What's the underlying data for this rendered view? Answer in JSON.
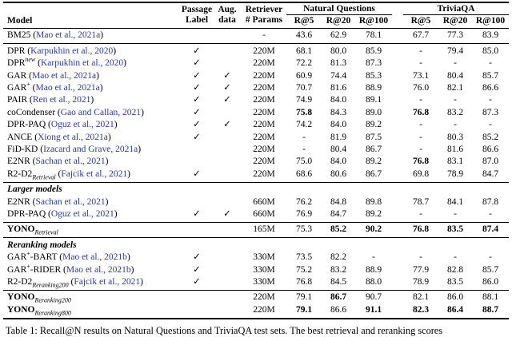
{
  "page": {
    "caption": "Table 1: Recall@N results on Natural Questions and TriviaQA test sets. The best retrieval and reranking scores"
  },
  "table": {
    "check_glyph": "✓",
    "cite_open": "(",
    "cite_close": ")",
    "link_color": "#2c38ae",
    "header": {
      "model": "Model",
      "passage_line1": "Passage",
      "passage_line2": "Label",
      "aug_line1": "Aug.",
      "aug_line2": "data",
      "params_line1": "Retriever",
      "params_line2": "# Params",
      "group_nq": "Natural Questions",
      "group_tqa": "TriviaQA",
      "subcols": [
        "R@5",
        "R@20",
        "R@100",
        "R@5",
        "R@20",
        "R@100"
      ]
    },
    "sections": [
      {
        "heading": null,
        "rows": [
          {
            "name": [
              {
                "t": "BM25",
                "s": "n"
              }
            ],
            "cite": "Mao et al., 2021a",
            "passage": false,
            "aug": false,
            "params": "-",
            "vals": [
              "43.6",
              "62.9",
              "78.1",
              "67.7",
              "77.3",
              "83.9"
            ],
            "bold": [
              false,
              false,
              false,
              false,
              false,
              false
            ]
          }
        ]
      },
      {
        "heading": null,
        "rows": [
          {
            "name": [
              {
                "t": "DPR",
                "s": "n"
              }
            ],
            "cite": "Karpukhin et al., 2020",
            "passage": true,
            "aug": false,
            "params": "220M",
            "vals": [
              "68.1",
              "80.0",
              "85.9",
              "-",
              "79.4",
              "85.0"
            ],
            "bold": [
              false,
              false,
              false,
              false,
              false,
              false
            ]
          },
          {
            "name": [
              {
                "t": "DPR",
                "s": "n"
              },
              {
                "t": "new",
                "s": "supi"
              }
            ],
            "cite": "Karpukhin et al., 2020",
            "passage": true,
            "aug": false,
            "params": "220M",
            "vals": [
              "72.2",
              "81.3",
              "87.3",
              "-",
              "-",
              "-"
            ],
            "bold": [
              false,
              false,
              false,
              false,
              false,
              false
            ]
          },
          {
            "name": [
              {
                "t": "GAR",
                "s": "n"
              }
            ],
            "cite": "Mao et al., 2021a",
            "passage": true,
            "aug": true,
            "params": "220M",
            "vals": [
              "60.9",
              "74.4",
              "85.3",
              "73.1",
              "80.4",
              "85.7"
            ],
            "bold": [
              false,
              false,
              false,
              false,
              false,
              false
            ]
          },
          {
            "name": [
              {
                "t": "GAR",
                "s": "n"
              },
              {
                "t": "+",
                "s": "sup"
              }
            ],
            "cite": "Mao et al., 2021a",
            "passage": true,
            "aug": true,
            "params": "220M",
            "vals": [
              "70.7",
              "81.6",
              "88.9",
              "76.0",
              "82.1",
              "86.6"
            ],
            "bold": [
              false,
              false,
              false,
              false,
              false,
              false
            ]
          },
          {
            "name": [
              {
                "t": "PAIR",
                "s": "n"
              }
            ],
            "cite": "Ren et al., 2021",
            "passage": true,
            "aug": true,
            "params": "220M",
            "vals": [
              "74.9",
              "84.0",
              "89.1",
              "-",
              "-",
              "-"
            ],
            "bold": [
              false,
              false,
              false,
              false,
              false,
              false
            ]
          },
          {
            "name": [
              {
                "t": "coCondenser",
                "s": "n"
              }
            ],
            "cite": "Gao and Callan, 2021",
            "passage": true,
            "aug": false,
            "params": "220M",
            "vals": [
              "75.8",
              "84.3",
              "89.0",
              "76.8",
              "83.2",
              "87.3"
            ],
            "bold": [
              true,
              false,
              false,
              true,
              false,
              false
            ]
          },
          {
            "name": [
              {
                "t": "DPR-PAQ",
                "s": "n"
              }
            ],
            "cite": "Oguz et al., 2021",
            "passage": true,
            "aug": true,
            "params": "220M",
            "vals": [
              "74.2",
              "84.0",
              "89.2",
              "-",
              "-",
              "-"
            ],
            "bold": [
              false,
              false,
              false,
              false,
              false,
              false
            ]
          },
          {
            "name": [
              {
                "t": "ANCE",
                "s": "n"
              }
            ],
            "cite": "Xiong et al., 2021a",
            "passage": true,
            "aug": false,
            "params": "220M",
            "vals": [
              "-",
              "81.9",
              "87.5",
              "-",
              "80.3",
              "85.2"
            ],
            "bold": [
              false,
              false,
              false,
              false,
              false,
              false
            ]
          },
          {
            "name": [
              {
                "t": "FiD-KD",
                "s": "n"
              }
            ],
            "cite": "Izacard and Grave, 2021a",
            "passage": false,
            "aug": false,
            "params": "220M",
            "vals": [
              "-",
              "80.4",
              "86.7",
              "-",
              "81.6",
              "86.6"
            ],
            "bold": [
              false,
              false,
              false,
              false,
              false,
              false
            ]
          },
          {
            "name": [
              {
                "t": "E2NR",
                "s": "n"
              }
            ],
            "cite": "Sachan et al., 2021",
            "passage": false,
            "aug": false,
            "params": "220M",
            "vals": [
              "75.0",
              "84.0",
              "89.2",
              "76.8",
              "83.1",
              "87.0"
            ],
            "bold": [
              false,
              false,
              false,
              true,
              false,
              false
            ]
          },
          {
            "name": [
              {
                "t": "R2-D2",
                "s": "n"
              },
              {
                "t": "Retrieval",
                "s": "sub"
              }
            ],
            "cite": "Fajcik et al., 2021",
            "passage": true,
            "aug": false,
            "params": "220M",
            "vals": [
              "68.6",
              "80.6",
              "86.7",
              "69.8",
              "78.9",
              "84.7"
            ],
            "bold": [
              false,
              false,
              false,
              false,
              false,
              false
            ]
          }
        ]
      },
      {
        "heading": "Larger models",
        "rows": [
          {
            "name": [
              {
                "t": "E2NR",
                "s": "n"
              }
            ],
            "cite": "Sachan et al., 2021",
            "passage": false,
            "aug": false,
            "params": "660M",
            "vals": [
              "76.2",
              "84.8",
              "89.8",
              "78.7",
              "84.1",
              "87.8"
            ],
            "bold": [
              false,
              false,
              false,
              false,
              false,
              false
            ]
          },
          {
            "name": [
              {
                "t": "DPR-PAQ",
                "s": "n"
              }
            ],
            "cite": "Oguz et al., 2021",
            "passage": true,
            "aug": true,
            "params": "660M",
            "vals": [
              "76.9",
              "84.7",
              "89.2",
              "-",
              "-",
              "-"
            ],
            "bold": [
              false,
              false,
              false,
              false,
              false,
              false
            ]
          }
        ]
      },
      {
        "heading": null,
        "rows": [
          {
            "name": [
              {
                "t": "YONO",
                "s": "b"
              },
              {
                "t": "Retrieval",
                "s": "sub"
              }
            ],
            "cite": null,
            "passage": false,
            "aug": false,
            "params": "165M",
            "vals": [
              "75.3",
              "85.2",
              "90.2",
              "76.8",
              "83.5",
              "87.4"
            ],
            "bold": [
              false,
              true,
              true,
              true,
              true,
              true
            ]
          }
        ]
      },
      {
        "heading": "Reranking models",
        "rows": [
          {
            "name": [
              {
                "t": "GAR",
                "s": "n"
              },
              {
                "t": "+",
                "s": "sup"
              },
              {
                "t": "-BART",
                "s": "n"
              }
            ],
            "cite": "Mao et al., 2021b",
            "passage": true,
            "aug": false,
            "params": "330M",
            "vals": [
              "73.5",
              "82.2",
              "-",
              "-",
              "-",
              "-"
            ],
            "bold": [
              false,
              false,
              false,
              false,
              false,
              false
            ]
          },
          {
            "name": [
              {
                "t": "GAR",
                "s": "n"
              },
              {
                "t": "+",
                "s": "sup"
              },
              {
                "t": "-RIDER",
                "s": "n"
              }
            ],
            "cite": "Mao et al., 2021b",
            "passage": true,
            "aug": false,
            "params": "330M",
            "vals": [
              "75.2",
              "83.2",
              "88.9",
              "77.9",
              "82.8",
              "85.7"
            ],
            "bold": [
              false,
              false,
              false,
              false,
              false,
              false
            ]
          },
          {
            "name": [
              {
                "t": "R2-D2",
                "s": "n"
              },
              {
                "t": "Reranking200",
                "s": "sub"
              }
            ],
            "cite": "Fajcik et al., 2021",
            "passage": true,
            "aug": false,
            "params": "330M",
            "vals": [
              "76.8",
              "84.5",
              "88.0",
              "78.9",
              "83.5",
              "86.0"
            ],
            "bold": [
              false,
              false,
              false,
              false,
              false,
              false
            ]
          }
        ]
      },
      {
        "heading": null,
        "rows": [
          {
            "name": [
              {
                "t": "YONO",
                "s": "b"
              },
              {
                "t": "Reranking200",
                "s": "sub"
              }
            ],
            "cite": null,
            "passage": false,
            "aug": false,
            "params": "220M",
            "vals": [
              "79.1",
              "86.7",
              "90.7",
              "82.1",
              "86.0",
              "88.1"
            ],
            "bold": [
              false,
              true,
              false,
              false,
              false,
              false
            ]
          },
          {
            "name": [
              {
                "t": "YONO",
                "s": "b"
              },
              {
                "t": "Reranking800",
                "s": "sub"
              }
            ],
            "cite": null,
            "passage": false,
            "aug": false,
            "params": "220M",
            "vals": [
              "79.1",
              "86.6",
              "91.1",
              "82.3",
              "86.4",
              "88.7"
            ],
            "bold": [
              true,
              false,
              true,
              true,
              true,
              true
            ]
          }
        ]
      }
    ]
  }
}
